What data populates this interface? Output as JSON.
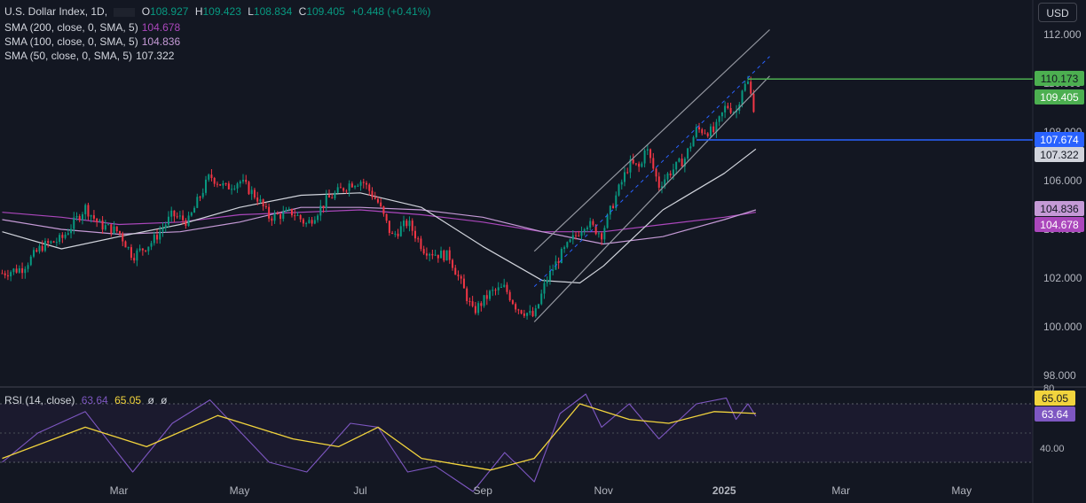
{
  "header": {
    "symbol": "U.S. Dollar Index, 1D,",
    "ohlc": [
      {
        "k": "O",
        "v": "108.927"
      },
      {
        "k": "H",
        "v": "109.423"
      },
      {
        "k": "L",
        "v": "108.834"
      },
      {
        "k": "C",
        "v": "109.405"
      }
    ],
    "change": "+0.448 (+0.41%)",
    "currency": "USD"
  },
  "indicators": [
    {
      "label": "SMA (200, close, 0, SMA, 5)",
      "value": "104.678"
    },
    {
      "label": "SMA (100, close, 0, SMA, 5)",
      "value": "104.836"
    },
    {
      "label": "SMA (50, close, 0, SMA, 5)",
      "value": "107.322"
    }
  ],
  "rsi_legend": {
    "label": "RSI (14, close)",
    "v1": "63.64",
    "v2": "65.05",
    "v3": "ø",
    "v4": "ø"
  },
  "colors": {
    "background": "#131722",
    "up": "#089981",
    "down": "#f23645",
    "sma200": "#ab47bc",
    "sma100": "#c59ad6",
    "sma50": "#d1d4dc",
    "rsi": "#7e57c2",
    "rsi_ma": "#f2d43d",
    "level_green": "#4caf50",
    "level_blue": "#2962ff"
  },
  "chart_data": {
    "type": "candlestick",
    "yticks": [
      "112.000",
      "110.000",
      "108.000",
      "106.000",
      "104.000",
      "102.000",
      "100.000",
      "98.000"
    ],
    "xticks": [
      "Mar",
      "May",
      "Jul",
      "Sep",
      "Nov",
      "2025",
      "Mar",
      "May"
    ],
    "ylim": [
      97.6,
      112.4
    ],
    "price_labels": [
      {
        "text": "110.173",
        "value": 110.173,
        "kind": "level_green"
      },
      {
        "text": "109.405",
        "value": 109.405,
        "kind": "last"
      },
      {
        "text": "107.674",
        "value": 107.674,
        "kind": "level_blue"
      },
      {
        "text": "107.322",
        "value": 107.322,
        "kind": "sma50"
      },
      {
        "text": "104.836",
        "value": 104.836,
        "kind": "sma100"
      },
      {
        "text": "104.678",
        "value": 104.678,
        "kind": "sma200"
      }
    ],
    "horizontal_levels": [
      {
        "value": 110.173,
        "color": "#4caf50"
      },
      {
        "value": 107.674,
        "color": "#2962ff"
      }
    ],
    "price_path": [
      [
        "2024-01-02",
        102.2
      ],
      [
        "2024-01-12",
        102.4
      ],
      [
        "2024-01-22",
        103.3
      ],
      [
        "2024-02-01",
        103.6
      ],
      [
        "2024-02-13",
        104.9
      ],
      [
        "2024-02-20",
        104.2
      ],
      [
        "2024-03-01",
        103.9
      ],
      [
        "2024-03-08",
        102.9
      ],
      [
        "2024-03-18",
        103.5
      ],
      [
        "2024-03-28",
        104.6
      ],
      [
        "2024-04-05",
        104.3
      ],
      [
        "2024-04-10",
        105.2
      ],
      [
        "2024-04-16",
        106.2
      ],
      [
        "2024-04-24",
        105.7
      ],
      [
        "2024-05-01",
        106.0
      ],
      [
        "2024-05-10",
        105.3
      ],
      [
        "2024-05-16",
        104.5
      ],
      [
        "2024-05-28",
        104.7
      ],
      [
        "2024-06-04",
        104.2
      ],
      [
        "2024-06-14",
        105.2
      ],
      [
        "2024-06-26",
        105.9
      ],
      [
        "2024-07-02",
        106.0
      ],
      [
        "2024-07-10",
        105.1
      ],
      [
        "2024-07-17",
        103.7
      ],
      [
        "2024-07-25",
        104.3
      ],
      [
        "2024-08-02",
        103.2
      ],
      [
        "2024-08-08",
        103.0
      ],
      [
        "2024-08-15",
        102.9
      ],
      [
        "2024-08-23",
        101.4
      ],
      [
        "2024-08-27",
        100.6
      ],
      [
        "2024-09-05",
        101.4
      ],
      [
        "2024-09-12",
        101.6
      ],
      [
        "2024-09-18",
        100.8
      ],
      [
        "2024-09-27",
        100.4
      ],
      [
        "2024-10-03",
        101.9
      ],
      [
        "2024-10-10",
        102.9
      ],
      [
        "2024-10-23",
        104.3
      ],
      [
        "2024-10-31",
        103.8
      ],
      [
        "2024-11-06",
        105.1
      ],
      [
        "2024-11-14",
        106.7
      ],
      [
        "2024-11-20",
        106.5
      ],
      [
        "2024-11-22",
        107.5
      ],
      [
        "2024-11-29",
        105.8
      ],
      [
        "2024-12-04",
        106.3
      ],
      [
        "2024-12-12",
        106.9
      ],
      [
        "2024-12-18",
        108.1
      ],
      [
        "2024-12-27",
        108.0
      ],
      [
        "2025-01-02",
        109.1
      ],
      [
        "2025-01-07",
        108.8
      ],
      [
        "2025-01-10",
        109.8
      ],
      [
        "2025-01-13",
        110.0
      ],
      [
        "2025-01-16",
        109.0
      ],
      [
        "2025-01-17",
        109.4
      ]
    ],
    "sma200": [
      [
        "2024-01-02",
        104.7
      ],
      [
        "2024-02-01",
        104.5
      ],
      [
        "2024-03-01",
        104.2
      ],
      [
        "2024-04-01",
        104.3
      ],
      [
        "2024-05-01",
        104.6
      ],
      [
        "2024-06-01",
        104.7
      ],
      [
        "2024-07-01",
        104.8
      ],
      [
        "2024-08-01",
        104.6
      ],
      [
        "2024-09-01",
        104.3
      ],
      [
        "2024-10-01",
        103.9
      ],
      [
        "2024-11-01",
        103.9
      ],
      [
        "2024-12-01",
        104.2
      ],
      [
        "2025-01-01",
        104.5
      ],
      [
        "2025-01-17",
        104.7
      ]
    ],
    "sma100": [
      [
        "2024-01-02",
        104.4
      ],
      [
        "2024-02-01",
        104.0
      ],
      [
        "2024-03-01",
        103.8
      ],
      [
        "2024-04-01",
        103.9
      ],
      [
        "2024-05-01",
        104.3
      ],
      [
        "2024-06-01",
        104.9
      ],
      [
        "2024-07-01",
        104.9
      ],
      [
        "2024-08-01",
        104.8
      ],
      [
        "2024-09-01",
        104.5
      ],
      [
        "2024-10-01",
        103.9
      ],
      [
        "2024-11-01",
        103.4
      ],
      [
        "2024-12-01",
        103.7
      ],
      [
        "2025-01-01",
        104.4
      ],
      [
        "2025-01-17",
        104.8
      ]
    ],
    "sma50": [
      [
        "2024-01-02",
        103.9
      ],
      [
        "2024-02-01",
        103.2
      ],
      [
        "2024-03-01",
        103.7
      ],
      [
        "2024-04-01",
        104.2
      ],
      [
        "2024-05-01",
        104.9
      ],
      [
        "2024-06-01",
        105.4
      ],
      [
        "2024-07-01",
        105.5
      ],
      [
        "2024-08-01",
        104.9
      ],
      [
        "2024-09-01",
        103.3
      ],
      [
        "2024-10-01",
        101.9
      ],
      [
        "2024-10-20",
        101.8
      ],
      [
        "2024-11-01",
        102.5
      ],
      [
        "2024-12-01",
        104.8
      ],
      [
        "2025-01-01",
        106.3
      ],
      [
        "2025-01-17",
        107.3
      ]
    ],
    "channel": {
      "start": [
        "2024-09-27",
        100.2
      ],
      "upper_start_value": 103.1,
      "end": [
        "2025-01-24",
        110.3
      ],
      "upper_end_value": 112.2,
      "mid_end_value": 111.1
    },
    "rsi": {
      "ticks": [
        "80",
        "40.00"
      ],
      "ylim": [
        20,
        80
      ],
      "badges": [
        {
          "text": "65.05",
          "kind": "rsi_ma"
        },
        {
          "text": "63.64",
          "kind": "rsi"
        }
      ],
      "series": [
        [
          "2024-01-02",
          40
        ],
        [
          "2024-01-20",
          55
        ],
        [
          "2024-02-13",
          66
        ],
        [
          "2024-03-08",
          35
        ],
        [
          "2024-03-28",
          60
        ],
        [
          "2024-04-16",
          72
        ],
        [
          "2024-05-16",
          40
        ],
        [
          "2024-06-04",
          35
        ],
        [
          "2024-06-26",
          60
        ],
        [
          "2024-07-10",
          58
        ],
        [
          "2024-07-25",
          35
        ],
        [
          "2024-08-08",
          38
        ],
        [
          "2024-08-27",
          25
        ],
        [
          "2024-09-12",
          45
        ],
        [
          "2024-09-27",
          30
        ],
        [
          "2024-10-10",
          65
        ],
        [
          "2024-10-23",
          75
        ],
        [
          "2024-10-31",
          58
        ],
        [
          "2024-11-14",
          70
        ],
        [
          "2024-11-29",
          52
        ],
        [
          "2024-12-18",
          70
        ],
        [
          "2025-01-02",
          73
        ],
        [
          "2025-01-07",
          62
        ],
        [
          "2025-01-13",
          70
        ],
        [
          "2025-01-17",
          63.6
        ]
      ],
      "ma": [
        [
          "2024-01-02",
          42
        ],
        [
          "2024-02-13",
          58
        ],
        [
          "2024-03-15",
          48
        ],
        [
          "2024-04-20",
          64
        ],
        [
          "2024-05-28",
          52
        ],
        [
          "2024-06-20",
          48
        ],
        [
          "2024-07-10",
          58
        ],
        [
          "2024-08-01",
          42
        ],
        [
          "2024-09-05",
          36
        ],
        [
          "2024-09-27",
          42
        ],
        [
          "2024-10-20",
          70
        ],
        [
          "2024-11-14",
          62
        ],
        [
          "2024-12-04",
          60
        ],
        [
          "2024-12-27",
          66
        ],
        [
          "2025-01-17",
          65.05
        ]
      ]
    }
  }
}
